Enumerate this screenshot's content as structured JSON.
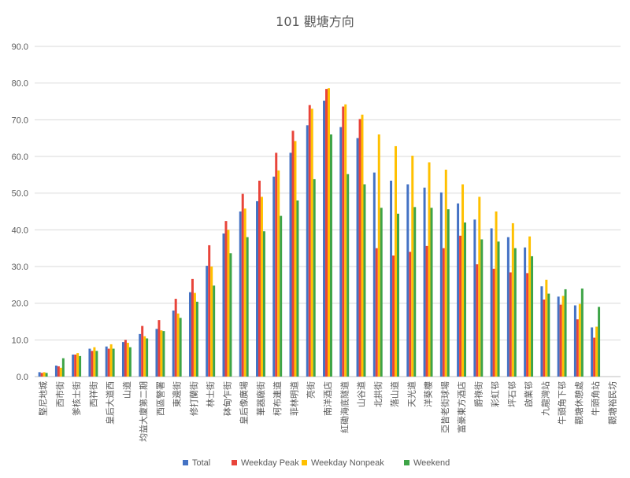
{
  "chart_data": {
    "type": "bar",
    "title": "101 觀塘方向",
    "xlabel": "",
    "ylabel": "",
    "ylim": [
      0,
      90
    ],
    "yticks": [
      "0.0",
      "10.0",
      "20.0",
      "30.0",
      "40.0",
      "50.0",
      "60.0",
      "70.0",
      "80.0",
      "90.0"
    ],
    "grid": "horizontal",
    "legend_position": "bottom",
    "categories": [
      "堅尼地城",
      "西市街",
      "爹核士街",
      "西祥街",
      "皇后大道西",
      "山道",
      "均益大廈第二期",
      "西區警署",
      "東邊街",
      "修打蘭街",
      "林士街",
      "砵甸乍街",
      "皇后像廣場",
      "華器廠街",
      "柯布連道",
      "菲林明道",
      "亮街",
      "南洋酒店",
      "紅磡海底隧道",
      "山谷道",
      "北拱街",
      "落山道",
      "天光道",
      "洋葵樓",
      "亞皆老街球場",
      "富豪東方酒店",
      "爵祿街",
      "彩虹邨",
      "坪石邨",
      "啟業邨",
      "九龍灣站",
      "牛頭角下邨",
      "觀塘休憩處",
      "牛頭角站",
      "觀塘裕民坊"
    ],
    "series": [
      {
        "name": "Total",
        "color": "#4472C4",
        "values": [
          1.2,
          3.0,
          6.0,
          7.6,
          8.2,
          9.4,
          11.6,
          13.0,
          18.0,
          23.0,
          30.2,
          39.0,
          45.0,
          47.8,
          54.5,
          61.0,
          68.5,
          75.2,
          68.0,
          65.0,
          55.6,
          53.4,
          52.4,
          51.5,
          50.2,
          47.2,
          42.8,
          40.4,
          38.0,
          35.2,
          24.6,
          21.8,
          19.4,
          13.4,
          null
        ]
      },
      {
        "name": "Weekday Peak",
        "color": "#E8443A",
        "values": [
          1.0,
          2.8,
          6.0,
          7.0,
          7.6,
          10.0,
          13.8,
          15.4,
          21.2,
          26.6,
          35.8,
          42.4,
          49.8,
          53.4,
          61.0,
          67.0,
          74.0,
          78.4,
          73.6,
          70.2,
          35.0,
          33.0,
          34.0,
          35.6,
          35.0,
          38.4,
          30.6,
          29.4,
          28.4,
          28.2,
          21.0,
          19.6,
          15.6,
          10.6,
          null
        ]
      },
      {
        "name": "Weekday Nonpeak",
        "color": "#FFC000",
        "values": [
          1.2,
          2.4,
          6.4,
          8.0,
          8.8,
          9.2,
          11.0,
          12.6,
          17.2,
          22.8,
          30.0,
          40.0,
          45.8,
          49.0,
          56.2,
          64.2,
          73.0,
          78.6,
          74.2,
          71.4,
          66.0,
          62.8,
          60.2,
          58.4,
          56.4,
          52.4,
          49.0,
          45.0,
          41.8,
          38.2,
          26.4,
          22.0,
          19.8,
          13.6,
          null
        ]
      },
      {
        "name": "Weekend",
        "color": "#3EA447",
        "values": [
          1.0,
          5.0,
          5.6,
          7.0,
          7.6,
          8.0,
          10.4,
          12.4,
          16.0,
          20.4,
          24.8,
          33.6,
          38.0,
          39.6,
          43.8,
          48.0,
          53.8,
          66.0,
          55.2,
          52.4,
          46.0,
          44.4,
          46.2,
          46.0,
          45.6,
          42.0,
          37.4,
          36.8,
          35.0,
          32.8,
          22.6,
          23.8,
          24.0,
          19.0,
          null
        ]
      }
    ]
  }
}
